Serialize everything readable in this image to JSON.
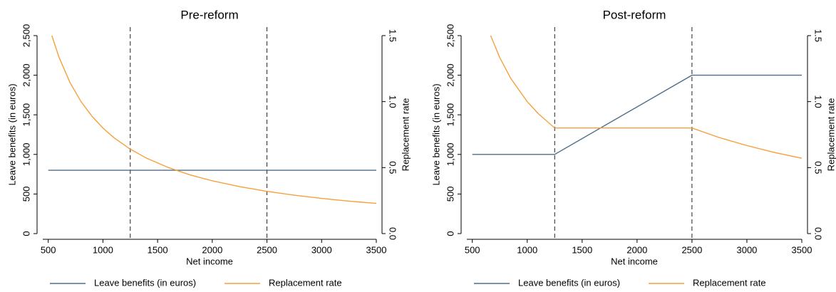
{
  "chart_data": [
    {
      "type": "line",
      "title": "Pre-reform",
      "x_label": "Net income",
      "y_label": "Leave benefits (in euros)",
      "y2_label": "Replacement rate",
      "xlim": [
        450,
        3500
      ],
      "xticks": [
        500,
        1000,
        1500,
        2000,
        2500,
        3000,
        3500
      ],
      "ylim": [
        0,
        2500
      ],
      "yticks": [
        0,
        500,
        {
          "value": 1000,
          "label": "1,000"
        },
        {
          "value": 1500,
          "label": "1,500"
        },
        {
          "value": 2000,
          "label": "2,000"
        },
        {
          "value": 2500,
          "label": "2,500"
        }
      ],
      "y2lim": [
        0,
        1.5
      ],
      "y2ticks": [
        {
          "value": 0,
          "label": "0.0"
        },
        0.5,
        {
          "value": 1,
          "label": "1.0"
        },
        1.5
      ],
      "vlines": [
        1250,
        2500
      ],
      "series": [
        {
          "name": "Leave benefits (in euros)",
          "color": "#4f6d88",
          "x": [
            500,
            3500
          ],
          "values": [
            800,
            800
          ]
        },
        {
          "name": "Replacement rate",
          "color": "#f5a03c",
          "axis": "y2",
          "x": [
            533,
            600,
            700,
            800,
            900,
            1000,
            1100,
            1250,
            1400,
            1600,
            1800,
            2000,
            2250,
            2500,
            2750,
            3000,
            3250,
            3500
          ],
          "values": [
            1.5,
            1.333,
            1.143,
            1.0,
            0.889,
            0.8,
            0.727,
            0.64,
            0.571,
            0.5,
            0.444,
            0.4,
            0.356,
            0.32,
            0.291,
            0.267,
            0.246,
            0.229
          ]
        }
      ]
    },
    {
      "type": "line",
      "title": "Post-reform",
      "x_label": "Net income",
      "y_label": "Leave benefits (in euros)",
      "y2_label": "Replacement rate",
      "xlim": [
        450,
        3500
      ],
      "xticks": [
        500,
        1000,
        1500,
        2000,
        2500,
        3000,
        3500
      ],
      "ylim": [
        0,
        2500
      ],
      "yticks": [
        0,
        500,
        {
          "value": 1000,
          "label": "1,000"
        },
        {
          "value": 1500,
          "label": "1,500"
        },
        {
          "value": 2000,
          "label": "2,000"
        },
        {
          "value": 2500,
          "label": "2,500"
        }
      ],
      "y2lim": [
        0,
        1.5
      ],
      "y2ticks": [
        {
          "value": 0,
          "label": "0.0"
        },
        0.5,
        {
          "value": 1,
          "label": "1.0"
        },
        1.5
      ],
      "vlines": [
        1250,
        2500
      ],
      "series": [
        {
          "name": "Leave benefits (in euros)",
          "color": "#4f6d88",
          "x": [
            500,
            1250,
            2500,
            3500
          ],
          "values": [
            1000,
            1000,
            2000,
            2000
          ]
        },
        {
          "name": "Replacement rate",
          "color": "#f5a03c",
          "axis": "y2",
          "x": [
            667,
            750,
            850,
            1000,
            1100,
            1250,
            2500,
            2750,
            3000,
            3250,
            3500
          ],
          "values": [
            1.5,
            1.333,
            1.176,
            1.0,
            0.909,
            0.8,
            0.8,
            0.727,
            0.667,
            0.615,
            0.571
          ]
        }
      ]
    }
  ]
}
